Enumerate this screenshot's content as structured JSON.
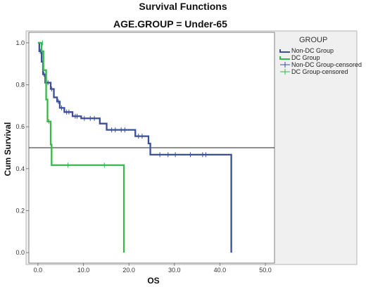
{
  "chart_data": {
    "type": "line",
    "title": "Survival Functions",
    "subtitle": "AGE.GROUP = Under-65",
    "xlabel": "OS",
    "ylabel": "Cum Survival",
    "xlim": [
      -2,
      52
    ],
    "ylim": [
      -0.05,
      1.05
    ],
    "x_ticks": [
      "0.0",
      "10.0",
      "20.0",
      "30.0",
      "40.0",
      "50.0"
    ],
    "y_ticks": [
      "0.0",
      "0.2",
      "0.4",
      "0.6",
      "0.8",
      "1.0"
    ],
    "x_tick_values": [
      0,
      10,
      20,
      30,
      40,
      50
    ],
    "y_tick_values": [
      0,
      0.2,
      0.4,
      0.6,
      0.8,
      1.0
    ],
    "reference_line_y": 0.5,
    "grid": false,
    "legend": {
      "title": "GROUP",
      "placement": "right",
      "entries": [
        "Non-DC Group",
        "DC Group",
        "Non-DC Group-censored",
        "DC Group-censored"
      ]
    },
    "series": [
      {
        "name": "Non-DC Group",
        "color": "#3b4f9a",
        "steps": [
          [
            0,
            1.0
          ],
          [
            0.3,
            0.96
          ],
          [
            0.8,
            0.91
          ],
          [
            1.1,
            0.85
          ],
          [
            1.6,
            0.81
          ],
          [
            2.8,
            0.78
          ],
          [
            3.5,
            0.74
          ],
          [
            4.2,
            0.72
          ],
          [
            4.8,
            0.69
          ],
          [
            5.8,
            0.67
          ],
          [
            7.6,
            0.65
          ],
          [
            9.5,
            0.64
          ],
          [
            13.6,
            0.615
          ],
          [
            15.1,
            0.585
          ],
          [
            21.4,
            0.555
          ],
          [
            24.3,
            0.52
          ],
          [
            24.7,
            0.467
          ],
          [
            42.5,
            0.0
          ]
        ],
        "censored": [
          [
            0.5,
            0.96
          ],
          [
            0.7,
            0.96
          ],
          [
            1.3,
            0.85
          ],
          [
            2.2,
            0.81
          ],
          [
            3.0,
            0.78
          ],
          [
            4.5,
            0.72
          ],
          [
            5.2,
            0.69
          ],
          [
            6.3,
            0.67
          ],
          [
            6.8,
            0.67
          ],
          [
            8.2,
            0.65
          ],
          [
            8.6,
            0.65
          ],
          [
            10.2,
            0.64
          ],
          [
            11.5,
            0.64
          ],
          [
            12.4,
            0.64
          ],
          [
            16.2,
            0.585
          ],
          [
            17.0,
            0.585
          ],
          [
            18.3,
            0.585
          ],
          [
            19.1,
            0.585
          ],
          [
            22.1,
            0.555
          ],
          [
            22.9,
            0.555
          ],
          [
            26.8,
            0.467
          ],
          [
            28.6,
            0.467
          ],
          [
            30.2,
            0.467
          ],
          [
            33.5,
            0.467
          ],
          [
            36.2,
            0.467
          ],
          [
            36.9,
            0.467
          ]
        ]
      },
      {
        "name": "DC Group",
        "color": "#36b84a",
        "steps": [
          [
            0,
            1.0
          ],
          [
            0.8,
            0.96
          ],
          [
            1.2,
            0.87
          ],
          [
            1.8,
            0.73
          ],
          [
            2.1,
            0.625
          ],
          [
            2.8,
            0.515
          ],
          [
            3.0,
            0.417
          ],
          [
            18.9,
            0.0
          ]
        ],
        "censored": [
          [
            1.0,
            1.0
          ],
          [
            2.4,
            0.625
          ],
          [
            6.6,
            0.417
          ],
          [
            14.6,
            0.417
          ]
        ]
      }
    ]
  }
}
